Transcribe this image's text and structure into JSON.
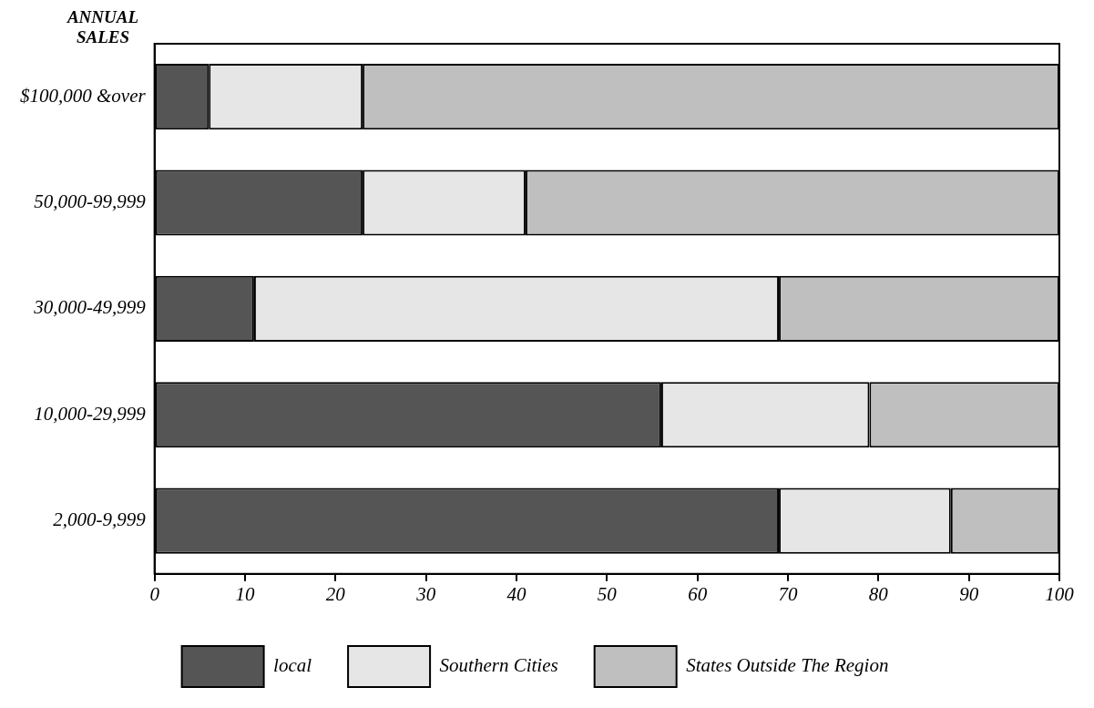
{
  "chart_data": {
    "type": "bar",
    "orientation": "horizontal",
    "stacked": true,
    "ylabel": "ANNUAL SALES",
    "categories": [
      "$100,000 &over",
      "50,000-99,999",
      "30,000-49,999",
      "10,000-29,999",
      "2,000-9,999"
    ],
    "series": [
      {
        "name": "local",
        "color": "#555555",
        "values": [
          6,
          23,
          11,
          56,
          69
        ]
      },
      {
        "name": "Southern Cities",
        "color": "#e6e6e6",
        "values": [
          17,
          18,
          58,
          23,
          19
        ]
      },
      {
        "name": "States Outside The Region",
        "color": "#bfbfbf",
        "values": [
          77,
          59,
          31,
          21,
          12
        ]
      }
    ],
    "xlim": [
      0,
      100
    ],
    "xticks": [
      0,
      10,
      20,
      30,
      40,
      50,
      60,
      70,
      80,
      90,
      100
    ],
    "grid": false,
    "legend": "bottom"
  }
}
